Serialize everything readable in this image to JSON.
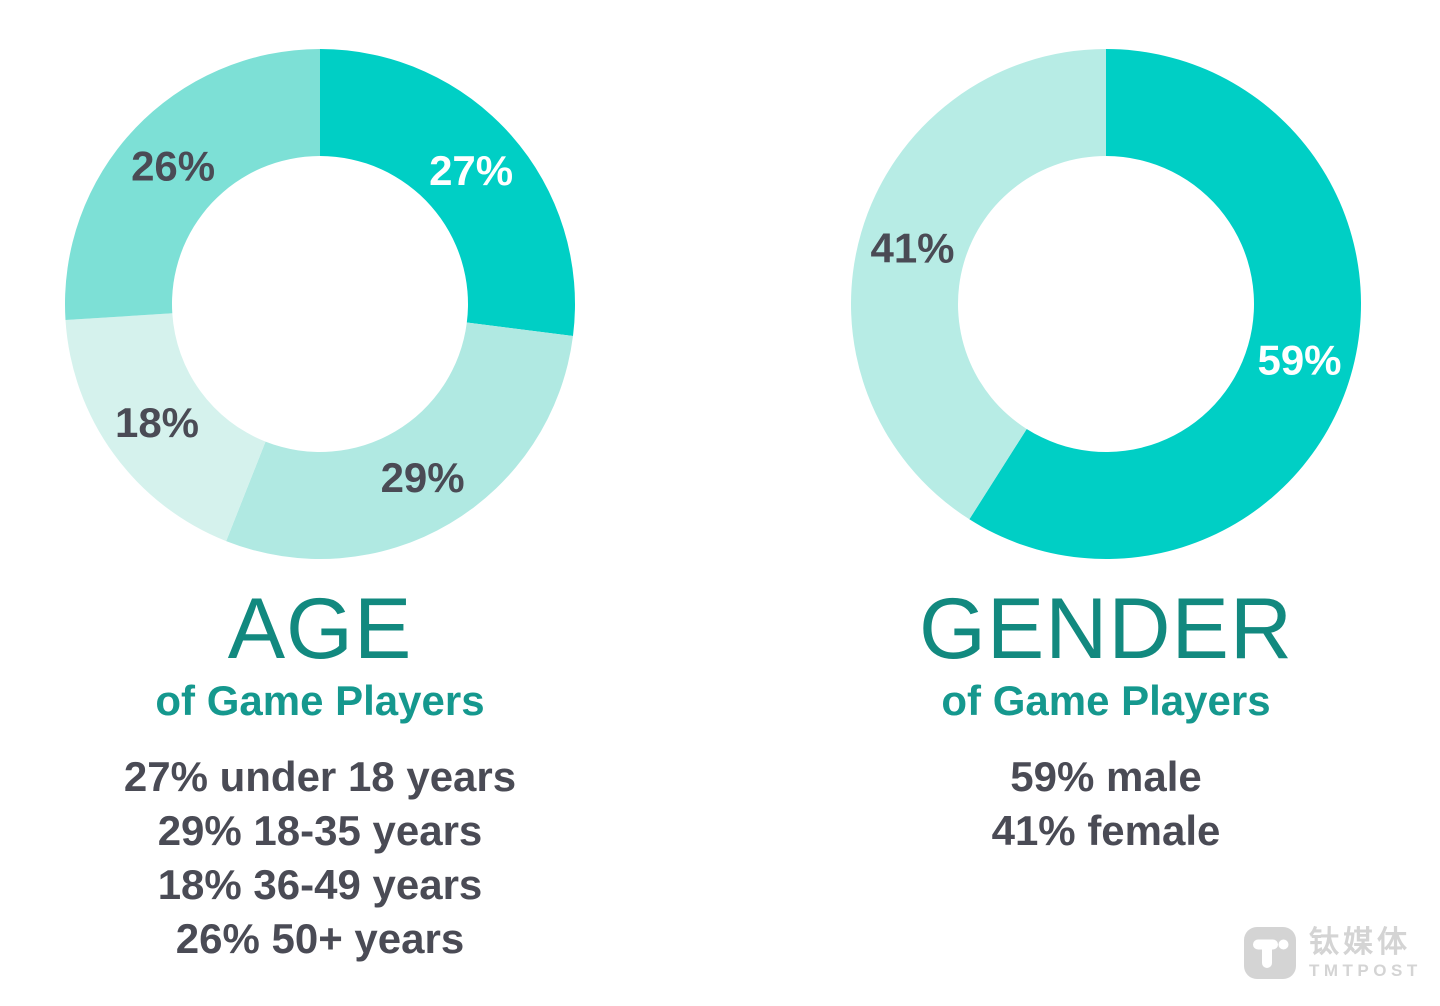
{
  "page": {
    "background": "#ffffff"
  },
  "chart_data": [
    {
      "type": "pie",
      "variant": "donut",
      "title": "AGE",
      "subtitle": "of Game Players",
      "start_angle_deg": 0,
      "direction": "clockwise",
      "outer_radius": 255,
      "inner_radius": 148,
      "slices": [
        {
          "label": "under 18 years",
          "value": 27,
          "display": "27%",
          "color": "#00cfc5",
          "label_color": "#ffffff"
        },
        {
          "label": "18-35 years",
          "value": 29,
          "display": "29%",
          "color": "#b0e9e2",
          "label_color": "#4a4b55"
        },
        {
          "label": "36-49 years",
          "value": 18,
          "display": "18%",
          "color": "#d5f2ed",
          "label_color": "#4a4b55"
        },
        {
          "label": "50+ years",
          "value": 26,
          "display": "26%",
          "color": "#7de0d6",
          "label_color": "#4a4b55"
        }
      ],
      "legend_lines": [
        "27% under 18 years",
        "29% 18-35 years",
        "18% 36-49 years",
        "26% 50+ years"
      ]
    },
    {
      "type": "pie",
      "variant": "donut",
      "title": "GENDER",
      "subtitle": "of Game Players",
      "start_angle_deg": 0,
      "direction": "clockwise",
      "outer_radius": 255,
      "inner_radius": 148,
      "slices": [
        {
          "label": "male",
          "value": 59,
          "display": "59%",
          "color": "#00cfc5",
          "label_color": "#ffffff"
        },
        {
          "label": "female",
          "value": 41,
          "display": "41%",
          "color": "#b7ece5",
          "label_color": "#4a4b55"
        }
      ],
      "legend_lines": [
        "59% male",
        "41% female"
      ]
    }
  ],
  "watermark": {
    "logo_glyph": "T",
    "cn_text": "钛媒体",
    "en_text": "TMTPOST",
    "color": "#d4d4d4"
  },
  "colors": {
    "title_teal": "#12897f",
    "subtitle_teal": "#15988e",
    "body_text": "#4a4b55",
    "background": "#ffffff"
  }
}
